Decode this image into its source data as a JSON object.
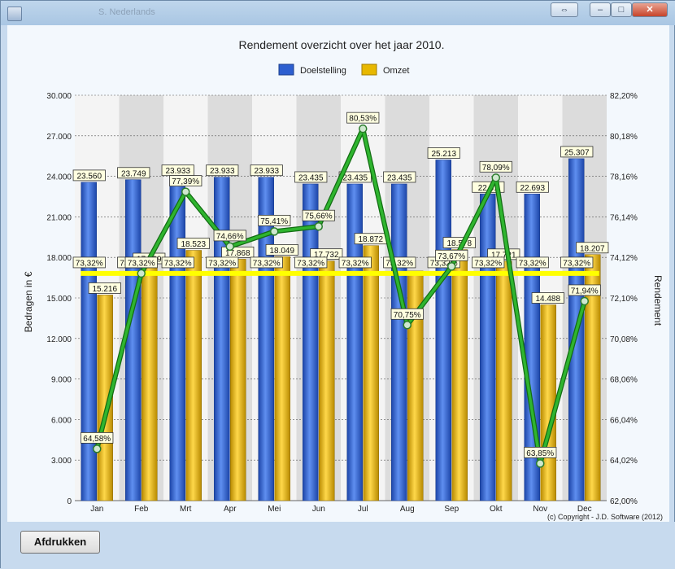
{
  "window": {
    "title_blur": "S. Nederlands",
    "controls": {
      "restore_label": "⇔",
      "minimize_label": "–",
      "maximize_label": "□",
      "close_label": "✕"
    }
  },
  "footer": {
    "print_label": "Afdrukken"
  },
  "copyright": "(c) Copyright - J.D. Software (2012)",
  "colors": {
    "doelstelling": "#2d5fd0",
    "omzet": "#e8b800",
    "rendement_line": "#2fb52f",
    "average_line": "#ffff00"
  },
  "chart_data": {
    "type": "bar",
    "title": "Rendement overzicht over het jaar 2010.",
    "xlabel": "",
    "ylabel": "Bedragen in €",
    "y2label": "Rendement",
    "categories": [
      "Jan",
      "Feb",
      "Mrt",
      "Apr",
      "Mei",
      "Jun",
      "Jul",
      "Aug",
      "Sep",
      "Okt",
      "Nov",
      "Dec"
    ],
    "series": [
      {
        "name": "Doelstelling",
        "values": [
          23560,
          23749,
          23933,
          23933,
          23933,
          23435,
          23435,
          23435,
          25213,
          22693,
          22693,
          25307
        ],
        "labels": [
          "23.560",
          "23.749",
          "23.933",
          "23.933",
          "23.933",
          "23.435",
          "23.435",
          "23.435",
          "25.213",
          "22.6..",
          "22.693",
          "25.307"
        ]
      },
      {
        "name": "Omzet",
        "values": [
          15216,
          17409,
          18523,
          17868,
          18049,
          17732,
          18872,
          17000,
          18578,
          17721,
          14488,
          18207
        ],
        "labels": [
          "15.216",
          "17.409",
          "18.523",
          "17.868",
          "18.049",
          "17.732",
          "18.872",
          "",
          "18.578",
          "17.721",
          "14.488",
          "18.207"
        ]
      }
    ],
    "rendement": {
      "values": [
        64.58,
        73.32,
        77.39,
        74.66,
        75.41,
        75.66,
        80.53,
        70.75,
        73.67,
        78.09,
        63.85,
        71.94
      ],
      "labels": [
        "64,58%",
        "73,32%",
        "77,39%",
        "74,66%",
        "75,41%",
        "75,66%",
        "80,53%",
        "70,75%",
        "73,67%",
        "78,09%",
        "63,85%",
        "71,94%"
      ]
    },
    "average": {
      "value": 73.32,
      "label": "73,32%"
    },
    "yticks": [
      "0",
      "3.000",
      "6.000",
      "9.000",
      "12.000",
      "15.000",
      "18.000",
      "21.000",
      "24.000",
      "27.000",
      "30.000"
    ],
    "y2ticks": [
      "62,00%",
      "64,02%",
      "66,04%",
      "68,06%",
      "70,08%",
      "72,10%",
      "74,12%",
      "76,14%",
      "78,16%",
      "80,18%",
      "82,20%"
    ],
    "ylim": [
      0,
      30000
    ],
    "y2lim": [
      62.0,
      82.2
    ],
    "legend": "top-center",
    "grid": true
  }
}
